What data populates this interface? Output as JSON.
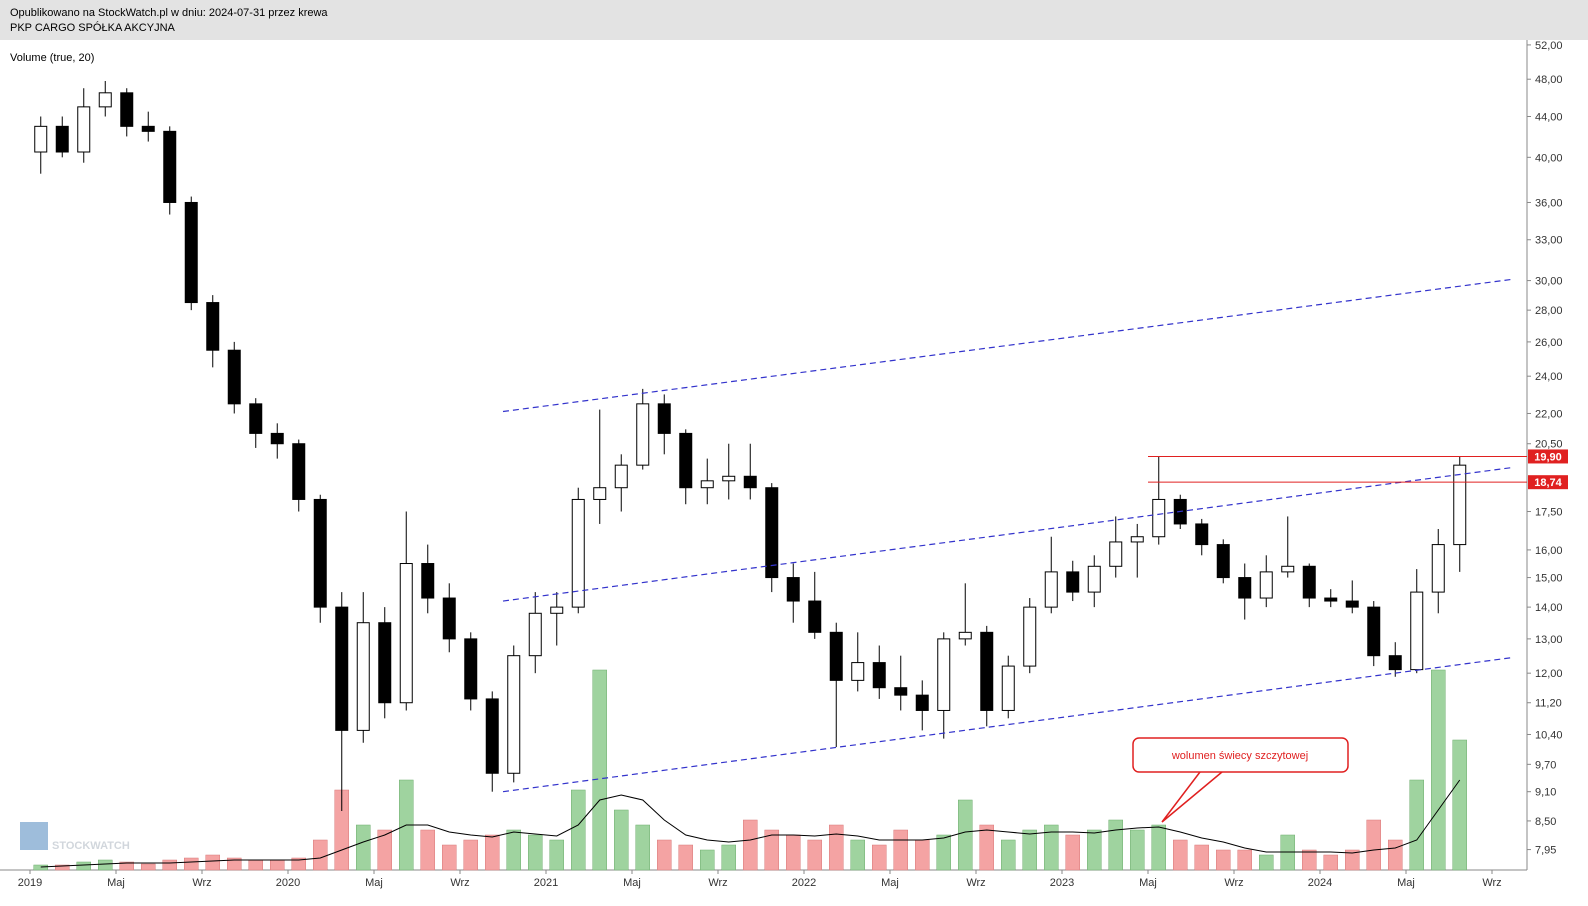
{
  "header": {
    "published": "Opublikowano na StockWatch.pl w dniu: 2024-07-31 przez krewa",
    "instrument": "PKP CARGO SPÓŁKA AKCYJNA"
  },
  "watermark": "STOCKWATCH",
  "chart_data": {
    "type": "candlestick",
    "log_scale": true,
    "indicator_label": "Volume (true, 20)",
    "up_color": "#ffffff",
    "down_color": "#000000",
    "volume_up_color": "#9fd39f",
    "volume_down_color": "#f4a3a3",
    "volume_ma_color": "#000000",
    "x": [
      "2019-01",
      "2019-02",
      "2019-03",
      "2019-04",
      "2019-05",
      "2019-06",
      "2019-07",
      "2019-08",
      "2019-09",
      "2019-10",
      "2019-11",
      "2019-12",
      "2020-01",
      "2020-02",
      "2020-03",
      "2020-04",
      "2020-05",
      "2020-06",
      "2020-07",
      "2020-08",
      "2020-09",
      "2020-10",
      "2020-11",
      "2020-12",
      "2021-01",
      "2021-02",
      "2021-03",
      "2021-04",
      "2021-05",
      "2021-06",
      "2021-07",
      "2021-08",
      "2021-09",
      "2021-10",
      "2021-11",
      "2021-12",
      "2022-01",
      "2022-02",
      "2022-03",
      "2022-04",
      "2022-05",
      "2022-06",
      "2022-07",
      "2022-08",
      "2022-09",
      "2022-10",
      "2022-11",
      "2022-12",
      "2023-01",
      "2023-02",
      "2023-03",
      "2023-04",
      "2023-05",
      "2023-06",
      "2023-07",
      "2023-08",
      "2023-09",
      "2023-10",
      "2023-11",
      "2023-12",
      "2024-01",
      "2024-02",
      "2024-03",
      "2024-04",
      "2024-05",
      "2024-06",
      "2024-07"
    ],
    "open": [
      40.5,
      43,
      40.5,
      45,
      46.5,
      43,
      42.5,
      36,
      28.5,
      25.5,
      22.5,
      21,
      20.5,
      18,
      14,
      10.5,
      13.5,
      11.2,
      15.5,
      14.3,
      13,
      11.3,
      9.5,
      12.5,
      13.8,
      14,
      18,
      18.5,
      19.5,
      22.5,
      21,
      18.5,
      18.8,
      19,
      18.5,
      15,
      14.2,
      13.2,
      11.8,
      12.3,
      11.6,
      11.4,
      11,
      13,
      13.2,
      11,
      12.2,
      14,
      15.2,
      14.5,
      15.4,
      16.3,
      16.5,
      18,
      17,
      16.2,
      15,
      14.3,
      15.2,
      15.4,
      14.3,
      14.2,
      14,
      12.5,
      12.1,
      14.5,
      16.2
    ],
    "high": [
      44,
      44,
      47,
      47.8,
      47,
      44.5,
      43,
      36.5,
      29,
      26,
      22.8,
      21.5,
      20.7,
      18.2,
      14.5,
      14.5,
      14,
      17.5,
      16.2,
      14.8,
      13.2,
      11.5,
      12.8,
      14.5,
      14.5,
      18.5,
      22.2,
      20,
      23.3,
      23,
      21.2,
      19.8,
      20.5,
      20.5,
      18.7,
      15.5,
      15.2,
      13.5,
      13.2,
      12.8,
      12.5,
      11.8,
      13.2,
      14.8,
      13.4,
      12.5,
      14.3,
      16.5,
      15.6,
      15.8,
      17.3,
      17,
      19.9,
      18.2,
      17.2,
      16.4,
      15.5,
      15.8,
      17.3,
      15.5,
      14.6,
      14.9,
      14.2,
      12.9,
      15.3,
      16.8,
      19.9
    ],
    "low": [
      38.5,
      40,
      39.5,
      44,
      42,
      41.5,
      35,
      28,
      24.5,
      22,
      20.3,
      19.8,
      17.5,
      13.5,
      8.7,
      10.2,
      10.8,
      11,
      13.8,
      12.6,
      11,
      9.1,
      9.3,
      12,
      12.8,
      13.8,
      17,
      17.5,
      19.3,
      20,
      17.8,
      17.8,
      18,
      18,
      14.5,
      13.5,
      13,
      10.1,
      11.5,
      11.3,
      11,
      10.5,
      10.3,
      12.8,
      10.6,
      10.8,
      12,
      13.8,
      14.2,
      14,
      15,
      15,
      16.2,
      16.8,
      15.8,
      14.8,
      13.6,
      14,
      15,
      14,
      14,
      13.8,
      12.2,
      11.9,
      12,
      13.8,
      15.2
    ],
    "close": [
      43,
      40.5,
      45,
      46.5,
      43,
      42.5,
      36,
      28.5,
      25.5,
      22.5,
      21,
      20.5,
      18,
      14,
      10.5,
      13.5,
      11.2,
      15.5,
      14.3,
      13,
      11.3,
      9.5,
      12.5,
      13.8,
      14,
      18,
      18.5,
      19.5,
      22.5,
      21,
      18.5,
      18.8,
      19,
      18.5,
      15,
      14.2,
      13.2,
      11.8,
      12.3,
      11.6,
      11.4,
      11,
      13,
      13.2,
      11,
      12.2,
      14,
      15.2,
      14.5,
      15.4,
      16.3,
      16.5,
      18,
      17,
      16.2,
      15,
      14.3,
      15.2,
      15.4,
      14.3,
      14.2,
      14,
      12.5,
      12.1,
      14.5,
      16.2,
      19.5
    ],
    "volume": [
      5,
      5,
      8,
      10,
      8,
      6,
      10,
      12,
      15,
      12,
      10,
      10,
      12,
      30,
      80,
      45,
      40,
      90,
      40,
      25,
      30,
      35,
      40,
      35,
      30,
      80,
      200,
      60,
      45,
      30,
      25,
      20,
      25,
      50,
      40,
      35,
      30,
      45,
      30,
      25,
      40,
      30,
      35,
      70,
      45,
      30,
      40,
      45,
      35,
      40,
      50,
      40,
      45,
      30,
      25,
      20,
      20,
      15,
      35,
      20,
      15,
      20,
      50,
      30,
      90,
      200,
      130
    ],
    "volume_ma": [
      3,
      4,
      5,
      6,
      7,
      7,
      7,
      8,
      9,
      10,
      10,
      10,
      10,
      12,
      20,
      28,
      35,
      45,
      45,
      38,
      35,
      33,
      38,
      36,
      34,
      45,
      70,
      75,
      70,
      50,
      35,
      30,
      28,
      30,
      35,
      35,
      34,
      36,
      34,
      30,
      30,
      30,
      32,
      38,
      40,
      38,
      36,
      38,
      38,
      37,
      40,
      42,
      43,
      38,
      32,
      28,
      22,
      18,
      18,
      18,
      18,
      17,
      20,
      22,
      30,
      60,
      90
    ],
    "ylim": [
      7.58,
      52.6
    ],
    "yticks": [
      {
        "value": 52,
        "label": "52,00"
      },
      {
        "value": 48,
        "label": "48,00"
      },
      {
        "value": 44,
        "label": "44,00"
      },
      {
        "value": 40,
        "label": "40,00"
      },
      {
        "value": 36,
        "label": "36,00"
      },
      {
        "value": 33,
        "label": "33,00"
      },
      {
        "value": 30,
        "label": "30,00"
      },
      {
        "value": 28,
        "label": "28,00"
      },
      {
        "value": 26,
        "label": "26,00"
      },
      {
        "value": 24,
        "label": "24,00"
      },
      {
        "value": 22,
        "label": "22,00"
      },
      {
        "value": 20.5,
        "label": "20,50"
      },
      {
        "value": 17.5,
        "label": "17,50"
      },
      {
        "value": 16,
        "label": "16,00"
      },
      {
        "value": 15,
        "label": "15,00"
      },
      {
        "value": 14,
        "label": "14,00"
      },
      {
        "value": 13,
        "label": "13,00"
      },
      {
        "value": 12,
        "label": "12,00"
      },
      {
        "value": 11.2,
        "label": "11,20"
      },
      {
        "value": 10.4,
        "label": "10,40"
      },
      {
        "value": 9.7,
        "label": "9,70"
      },
      {
        "value": 9.1,
        "label": "9,10"
      },
      {
        "value": 8.5,
        "label": "8,50"
      },
      {
        "value": 7.95,
        "label": "7,95"
      }
    ],
    "xticks": [
      {
        "value": "2019-01",
        "label": "2019"
      },
      {
        "value": "2019-05",
        "label": "Maj"
      },
      {
        "value": "2019-09",
        "label": "Wrz"
      },
      {
        "value": "2020-01",
        "label": "2020"
      },
      {
        "value": "2020-05",
        "label": "Maj"
      },
      {
        "value": "2020-09",
        "label": "Wrz"
      },
      {
        "value": "2021-01",
        "label": "2021"
      },
      {
        "value": "2021-05",
        "label": "Maj"
      },
      {
        "value": "2021-09",
        "label": "Wrz"
      },
      {
        "value": "2022-01",
        "label": "2022"
      },
      {
        "value": "2022-05",
        "label": "Maj"
      },
      {
        "value": "2022-09",
        "label": "Wrz"
      },
      {
        "value": "2023-01",
        "label": "2023"
      },
      {
        "value": "2023-05",
        "label": "Maj"
      },
      {
        "value": "2023-09",
        "label": "Wrz"
      },
      {
        "value": "2024-01",
        "label": "2024"
      },
      {
        "value": "2024-05",
        "label": "Maj"
      },
      {
        "value": "2024-09",
        "label": "Wrz"
      }
    ],
    "trendlines": [
      {
        "x": [
          "2020-11",
          "2024-10"
        ],
        "y": [
          22.1,
          30.1
        ],
        "color": "#3333cc"
      },
      {
        "x": [
          "2020-11",
          "2024-10"
        ],
        "y": [
          14.2,
          19.4
        ],
        "color": "#3333cc"
      },
      {
        "x": [
          "2020-11",
          "2024-10"
        ],
        "y": [
          9.1,
          12.45
        ],
        "color": "#3333cc"
      }
    ],
    "levels": [
      {
        "value": 19.9,
        "label": "19,90",
        "from": "2023-05",
        "color": "#e02020"
      },
      {
        "value": 18.74,
        "label": "18,74",
        "from": "2023-05",
        "color": "#e02020"
      }
    ],
    "annotation": "wolumen świecy szczytowej"
  }
}
